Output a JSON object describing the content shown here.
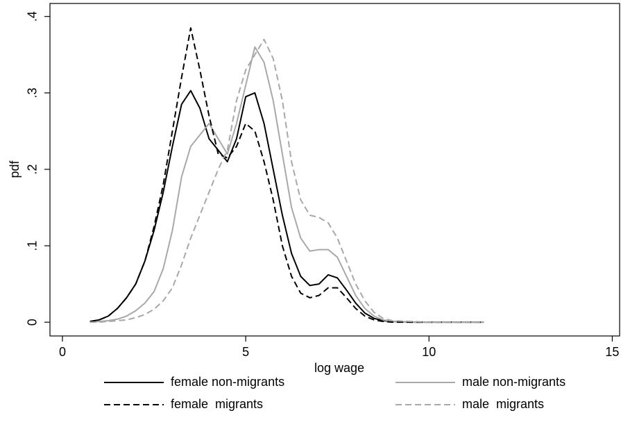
{
  "chart_data": {
    "type": "line",
    "xlabel": "log wage",
    "ylabel": "pdf",
    "x": [
      0.75,
      1,
      1.25,
      1.5,
      1.75,
      2,
      2.25,
      2.5,
      2.75,
      3,
      3.25,
      3.5,
      3.75,
      4,
      4.25,
      4.5,
      4.75,
      5,
      5.25,
      5.5,
      5.75,
      6,
      6.25,
      6.5,
      6.75,
      7,
      7.25,
      7.5,
      7.75,
      8,
      8.25,
      8.5,
      8.75,
      9,
      9.5,
      10,
      11.5
    ],
    "series": [
      {
        "name": "female non-migrants",
        "color": "#000000",
        "dashed": false,
        "values": [
          0.001,
          0.003,
          0.008,
          0.018,
          0.032,
          0.05,
          0.08,
          0.12,
          0.17,
          0.23,
          0.285,
          0.303,
          0.28,
          0.24,
          0.225,
          0.21,
          0.24,
          0.295,
          0.3,
          0.26,
          0.2,
          0.14,
          0.09,
          0.06,
          0.048,
          0.05,
          0.062,
          0.058,
          0.042,
          0.025,
          0.012,
          0.005,
          0.002,
          0.001,
          0,
          0,
          0
        ]
      },
      {
        "name": "male non-migrants",
        "color": "#a8a8a8",
        "dashed": false,
        "values": [
          0,
          0.001,
          0.002,
          0.004,
          0.008,
          0.015,
          0.025,
          0.04,
          0.07,
          0.12,
          0.19,
          0.23,
          0.245,
          0.26,
          0.24,
          0.22,
          0.26,
          0.31,
          0.36,
          0.34,
          0.29,
          0.22,
          0.15,
          0.11,
          0.093,
          0.095,
          0.095,
          0.085,
          0.06,
          0.035,
          0.018,
          0.008,
          0.003,
          0.001,
          0,
          0,
          0
        ]
      },
      {
        "name": "female  migrants",
        "color": "#000000",
        "dashed": true,
        "values": [
          0.001,
          0.003,
          0.008,
          0.018,
          0.032,
          0.05,
          0.08,
          0.125,
          0.18,
          0.25,
          0.32,
          0.385,
          0.33,
          0.27,
          0.22,
          0.215,
          0.23,
          0.26,
          0.25,
          0.21,
          0.16,
          0.1,
          0.06,
          0.038,
          0.032,
          0.035,
          0.045,
          0.045,
          0.032,
          0.018,
          0.008,
          0.003,
          0.001,
          0,
          0,
          0,
          0
        ]
      },
      {
        "name": "male  migrants",
        "color": "#a8a8a8",
        "dashed": true,
        "values": [
          0,
          0,
          0.001,
          0.002,
          0.003,
          0.006,
          0.01,
          0.017,
          0.028,
          0.045,
          0.075,
          0.11,
          0.14,
          0.17,
          0.2,
          0.225,
          0.29,
          0.33,
          0.35,
          0.37,
          0.345,
          0.29,
          0.21,
          0.16,
          0.14,
          0.137,
          0.13,
          0.11,
          0.08,
          0.05,
          0.028,
          0.013,
          0.005,
          0.002,
          0.001,
          0,
          0
        ]
      }
    ],
    "xlim": [
      -0.34,
      15.2
    ],
    "xticks": [
      0,
      5,
      10,
      15
    ],
    "ylim": [
      -0.018,
      0.417
    ],
    "yticks": [
      0,
      {
        "value": 0.1,
        "label": ".1"
      },
      {
        "value": 0.2,
        "label": ".2"
      },
      {
        "value": 0.3,
        "label": ".3"
      },
      {
        "value": 0.4,
        "label": ".4"
      }
    ],
    "grid": false
  }
}
